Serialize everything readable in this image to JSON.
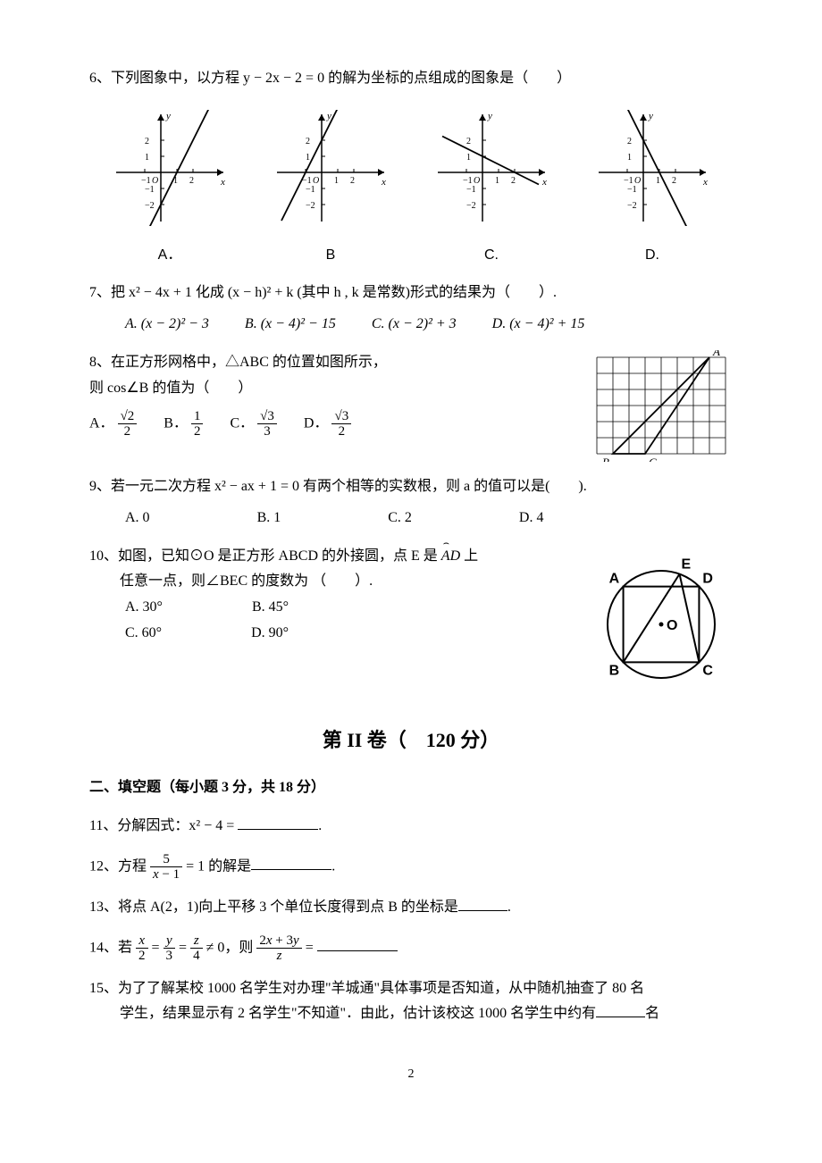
{
  "page_number": "2",
  "q6": {
    "text": "6、下列图象中，以方程 y − 2x − 2 = 0 的解为坐标的点组成的图象是（　　）",
    "labels": [
      "A．",
      "B",
      "C.",
      "D."
    ],
    "graphs": {
      "axis_color": "#000000",
      "width": 130,
      "height": 130,
      "xticks": [
        -1,
        1,
        2
      ],
      "yticks": [
        -2,
        -1,
        1,
        2
      ],
      "A": {
        "slope": 2,
        "intercept": -2
      },
      "B": {
        "slope": 2,
        "intercept": 2
      },
      "C": {
        "slope": -0.5,
        "intercept": 1
      },
      "D": {
        "slope": -2,
        "intercept": 2
      }
    }
  },
  "q7": {
    "text": "7、把 x² − 4x + 1 化成 (x − h)² + k (其中 h , k 是常数)形式的结果为（　　）.",
    "opts": [
      "A. (x − 2)² − 3",
      "B. (x − 4)² − 15",
      "C. (x − 2)² + 3",
      "D. (x − 4)² + 15"
    ]
  },
  "q8": {
    "text1": "8、在正方形网格中，△ABC 的位置如图所示，",
    "text2": "则 cos∠B 的值为（　　）",
    "opts": {
      "A": "A．",
      "B": "B．",
      "C": "C．",
      "D": "D．"
    },
    "grid": {
      "cols": 8,
      "rows": 6,
      "cell": 18,
      "stroke": "#000000",
      "labels": {
        "A": [
          7,
          0
        ],
        "B": [
          1,
          6
        ],
        "C": [
          3,
          6
        ]
      },
      "triangle": [
        [
          7,
          0
        ],
        [
          1,
          6
        ],
        [
          3,
          6
        ]
      ]
    }
  },
  "q9": {
    "text": "9、若一元二次方程 x² − ax + 1 = 0 有两个相等的实数根，则 a 的值可以是(　　).",
    "opts": [
      "A. 0",
      "B. 1",
      "C. 2",
      "D. 4"
    ]
  },
  "q10": {
    "text1": "10、如图，已知⊙O 是正方形 ABCD 的外接圆，点 E 是 ",
    "arc": "AD",
    "text1b": " 上",
    "text2": "任意一点，则∠BEC 的度数为 （　　）.",
    "opts": [
      "A. 30°",
      "B. 45°",
      "C. 60°",
      "D. 90°"
    ],
    "figure": {
      "size": 150,
      "stroke": "#000000",
      "label_font": "bold 16px Arial"
    }
  },
  "section2_title": "第 II 卷（　120 分）",
  "section2_sub": "二、填空题（每小题 3 分，共 18 分）",
  "q11": "11、分解因式：x² − 4 = ",
  "q12": {
    "pre": "12、方程 ",
    "post": " = 1 的解是"
  },
  "q13": "13、将点 A(2，1)向上平移 3 个单位长度得到点 B 的坐标是",
  "q14": {
    "pre": "14、若 ",
    "mid": " ≠ 0，则 ",
    "post": " = "
  },
  "q15a": "15、为了了解某校 1000 名学生对办理\"羊城通\"具体事项是否知道，从中随机抽查了 80 名",
  "q15b": "学生，结果显示有 2 名学生\"不知道\"．由此，估计该校这 1000 名学生中约有",
  "q15c": "名"
}
